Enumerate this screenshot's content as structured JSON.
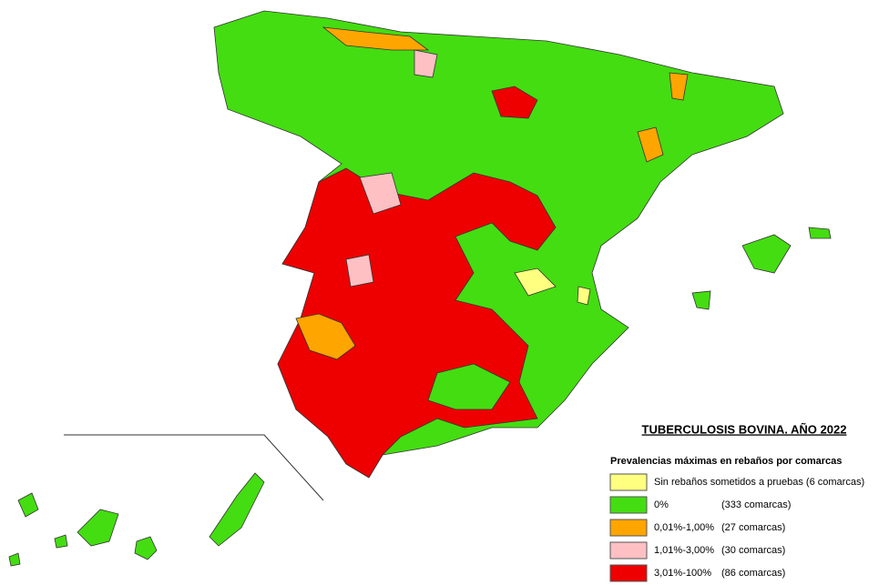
{
  "header": {
    "title": "TUBERCULOSIS BOVINA. AÑO 2022",
    "subtitle": "Prevalencias máximas en rebaños por comarcas"
  },
  "legend": [
    {
      "label": "Sin rebaños sometidos a pruebas (6 comarcas)",
      "color": "#ffff80"
    },
    {
      "label": "0%",
      "count": "(333 comarcas)",
      "color": "#44dd11"
    },
    {
      "label": "0,01%-1,00%",
      "count": "(27 comarcas)",
      "color": "#ffa500"
    },
    {
      "label": "1,01%-3,00%",
      "count": "(30 comarcas)",
      "color": "#ffc0c4"
    },
    {
      "label": "3,01%-100%",
      "count": "(86 comarcas)",
      "color": "#ee0000"
    }
  ]
}
